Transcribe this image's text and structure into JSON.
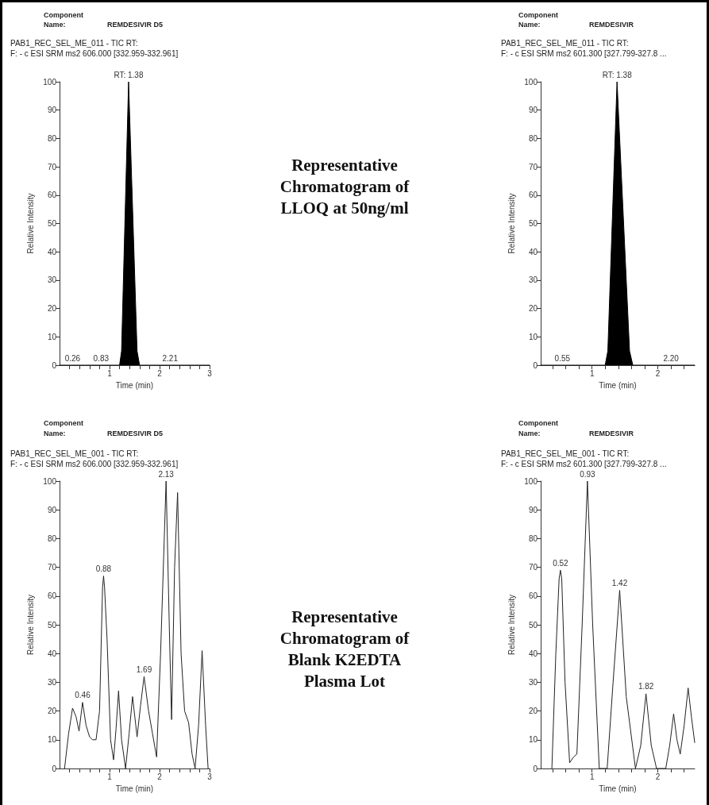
{
  "chart_data": [
    {
      "type": "area",
      "title": "REMDESIVIR D5",
      "subtitle": "PAB1_REC_SEL_ME_011 - TIC RT:\nF: - c ESI SRM ms2 606.000 [332.959-332.961]",
      "xlabel": "Time (min)",
      "ylabel": "Relative Intensity",
      "color": "#000000",
      "x": [
        0,
        0.5,
        1.0,
        1.2,
        1.24,
        1.38,
        1.55,
        1.6,
        2.0,
        2.5,
        3.0
      ],
      "values": [
        0,
        0,
        0,
        0,
        5,
        100,
        5,
        0,
        0,
        0,
        0
      ],
      "xlim": [
        0,
        3
      ],
      "xticks": [
        {
          "value": 0.2,
          "label": null
        },
        {
          "value": 0.4,
          "label": null
        },
        {
          "value": 0.6,
          "label": null
        },
        {
          "value": 0.8,
          "label": null
        },
        1,
        {
          "value": 1.2,
          "label": null
        },
        {
          "value": 1.4,
          "label": null
        },
        {
          "value": 1.6,
          "label": null
        },
        {
          "value": 1.8,
          "label": null
        },
        2,
        {
          "value": 2.2,
          "label": null
        },
        {
          "value": 2.4,
          "label": null
        },
        {
          "value": 2.6,
          "label": null
        },
        {
          "value": 2.8,
          "label": null
        },
        3
      ],
      "ylim": [
        0,
        100
      ],
      "yticks": [
        0,
        10,
        20,
        30,
        40,
        50,
        60,
        70,
        80,
        90,
        100
      ],
      "grid": false,
      "marker": "none",
      "annotations": [
        "Component",
        "Name:",
        {
          "text": "RT: 1.38",
          "x": 1.38,
          "y": 100
        },
        {
          "text": "0.26",
          "x": 0.26,
          "y": 0
        },
        {
          "text": "0.83",
          "x": 0.83,
          "y": 0
        },
        {
          "text": "2.21",
          "x": 2.21,
          "y": 0
        }
      ]
    },
    {
      "type": "other",
      "title": "Representative Chromatogram of LLOQ at 50ng/ml"
    },
    {
      "type": "area",
      "title": "REMDESIVIR",
      "subtitle": "PAB1_REC_SEL_ME_011 - TIC RT:\nF: - c ESI SRM ms2 601.300 [327.799-327.8 ...",
      "xlabel": "Time (min)",
      "ylabel": "Relative Intensity",
      "color": "#000000",
      "x": [
        0.22,
        0.6,
        1.0,
        1.2,
        1.24,
        1.38,
        1.57,
        1.62,
        2.0,
        2.56
      ],
      "values": [
        0,
        0,
        0,
        0,
        5,
        100,
        5,
        0,
        0,
        0
      ],
      "xlim": [
        0.22,
        2.56
      ],
      "xticks": [
        {
          "value": 0.4,
          "label": null
        },
        {
          "value": 0.6,
          "label": null
        },
        {
          "value": 0.8,
          "label": null
        },
        1,
        {
          "value": 1.2,
          "label": null
        },
        {
          "value": 1.4,
          "label": null
        },
        {
          "value": 1.6,
          "label": null
        },
        {
          "value": 1.8,
          "label": null
        },
        2,
        {
          "value": 2.2,
          "label": null
        },
        {
          "value": 2.4,
          "label": null
        }
      ],
      "ylim": [
        0,
        100
      ],
      "yticks": [
        0,
        10,
        20,
        30,
        40,
        50,
        60,
        70,
        80,
        90,
        100
      ],
      "grid": false,
      "marker": "none",
      "annotations": [
        "Component",
        "Name:",
        {
          "text": "RT: 1.38",
          "x": 1.38,
          "y": 100
        },
        {
          "text": "0.55",
          "x": 0.55,
          "y": 0
        },
        {
          "text": "2.20",
          "x": 2.2,
          "y": 0
        }
      ]
    },
    {
      "type": "line",
      "title": "REMDESIVIR D5",
      "subtitle": "PAB1_REC_SEL_ME_001 - TIC RT:\nF: - c ESI SRM ms2 606.000 [332.959-332.961]",
      "xlabel": "Time (min)",
      "ylabel": "Relative Intensity",
      "color": "#222222",
      "x": [
        0.1,
        0.18,
        0.26,
        0.33,
        0.39,
        0.46,
        0.53,
        0.6,
        0.66,
        0.73,
        0.8,
        0.86,
        0.88,
        0.9,
        0.95,
        1.02,
        1.08,
        1.13,
        1.18,
        1.24,
        1.32,
        1.39,
        1.46,
        1.55,
        1.62,
        1.69,
        1.78,
        1.86,
        1.94,
        2.02,
        2.13,
        2.2,
        2.24,
        2.3,
        2.36,
        2.43,
        2.5,
        2.58,
        2.65,
        2.71,
        2.78,
        2.85,
        2.92,
        2.97
      ],
      "values": [
        0,
        12,
        21,
        18,
        13,
        23,
        15,
        11,
        10,
        10,
        20,
        63,
        67,
        63,
        45,
        10,
        3,
        14,
        27,
        10,
        0,
        12,
        25,
        11,
        22,
        32,
        20,
        12,
        4,
        40,
        100,
        45,
        17,
        70,
        96,
        40,
        20,
        16,
        5,
        0,
        15,
        41,
        15,
        0
      ],
      "xlim": [
        0,
        3
      ],
      "xticks": [
        {
          "value": 0.2,
          "label": null
        },
        {
          "value": 0.4,
          "label": null
        },
        {
          "value": 0.6,
          "label": null
        },
        {
          "value": 0.8,
          "label": null
        },
        1,
        {
          "value": 1.2,
          "label": null
        },
        {
          "value": 1.4,
          "label": null
        },
        {
          "value": 1.6,
          "label": null
        },
        {
          "value": 1.8,
          "label": null
        },
        2,
        {
          "value": 2.2,
          "label": null
        },
        {
          "value": 2.4,
          "label": null
        },
        {
          "value": 2.6,
          "label": null
        },
        {
          "value": 2.8,
          "label": null
        },
        3
      ],
      "ylim": [
        0,
        100
      ],
      "yticks": [
        0,
        10,
        20,
        30,
        40,
        50,
        60,
        70,
        80,
        90,
        100
      ],
      "grid": false,
      "marker": "none",
      "annotations": [
        "Component",
        "Name:",
        {
          "text": "0.46",
          "x": 0.46,
          "y": 23
        },
        {
          "text": "0.88",
          "x": 0.88,
          "y": 67
        },
        {
          "text": "1.69",
          "x": 1.69,
          "y": 32
        },
        {
          "text": "2.13",
          "x": 2.13,
          "y": 100
        }
      ]
    },
    {
      "type": "other",
      "title": "Representative Chromatogram of Blank K2EDTA Plasma Lot"
    },
    {
      "type": "line",
      "title": "REMDESIVIR",
      "subtitle": "PAB1_REC_SEL_ME_001 - TIC RT:\nF: - c ESI SRM ms2 601.300 [327.799-327.8 ...",
      "xlabel": "Time (min)",
      "ylabel": "Relative Intensity",
      "color": "#222222",
      "x": [
        0.39,
        0.45,
        0.5,
        0.52,
        0.54,
        0.59,
        0.66,
        0.72,
        0.77,
        0.85,
        0.93,
        1.01,
        1.11,
        1.23,
        1.32,
        1.42,
        1.52,
        1.66,
        1.74,
        1.82,
        1.9,
        1.98,
        2.12,
        2.18,
        2.24,
        2.29,
        2.34,
        2.4,
        2.46,
        2.51,
        2.56
      ],
      "values": [
        0,
        40,
        66,
        69,
        66,
        30,
        2,
        4,
        5,
        50,
        100,
        50,
        0,
        0,
        30,
        62,
        25,
        0,
        8,
        26,
        8,
        0,
        0,
        8,
        19,
        10,
        5,
        15,
        28,
        18,
        9
      ],
      "xlim": [
        0.22,
        2.56
      ],
      "xticks": [
        {
          "value": 0.4,
          "label": null
        },
        {
          "value": 0.6,
          "label": null
        },
        {
          "value": 0.8,
          "label": null
        },
        1,
        {
          "value": 1.2,
          "label": null
        },
        {
          "value": 1.4,
          "label": null
        },
        {
          "value": 1.6,
          "label": null
        },
        {
          "value": 1.8,
          "label": null
        },
        2,
        {
          "value": 2.2,
          "label": null
        },
        {
          "value": 2.4,
          "label": null
        }
      ],
      "ylim": [
        0,
        100
      ],
      "yticks": [
        0,
        10,
        20,
        30,
        40,
        50,
        60,
        70,
        80,
        90,
        100
      ],
      "grid": false,
      "marker": "none",
      "annotations": [
        "Component",
        "Name:",
        {
          "text": "0.52",
          "x": 0.52,
          "y": 69
        },
        {
          "text": "0.93",
          "x": 0.93,
          "y": 100
        },
        {
          "text": "1.42",
          "x": 1.42,
          "y": 62
        },
        {
          "text": "1.82",
          "x": 1.82,
          "y": 26
        }
      ]
    }
  ]
}
